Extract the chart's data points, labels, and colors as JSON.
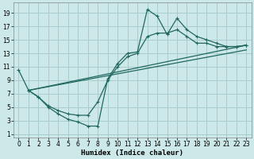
{
  "xlabel": "Humidex (Indice chaleur)",
  "bg_color": "#cce8e8",
  "grid_color": "#a8cccc",
  "line_color": "#206860",
  "xlim": [
    -0.5,
    23.5
  ],
  "ylim": [
    0.5,
    20.5
  ],
  "xticks": [
    0,
    1,
    2,
    3,
    4,
    5,
    6,
    7,
    8,
    9,
    10,
    11,
    12,
    13,
    14,
    15,
    16,
    17,
    18,
    19,
    20,
    21,
    22,
    23
  ],
  "yticks": [
    1,
    3,
    5,
    7,
    9,
    11,
    13,
    15,
    17,
    19
  ],
  "curve1_x": [
    0,
    1,
    2,
    3,
    4,
    5,
    6,
    7,
    8,
    9,
    10,
    11,
    12,
    13,
    14,
    15,
    16,
    17,
    18,
    19,
    20,
    21,
    22,
    23
  ],
  "curve1_y": [
    10.5,
    7.5,
    6.5,
    5.0,
    4.0,
    3.2,
    2.8,
    2.2,
    2.2,
    9.2,
    11.5,
    13.0,
    13.2,
    19.5,
    18.5,
    15.8,
    18.2,
    16.5,
    15.5,
    15.0,
    14.5,
    14.0,
    14.0,
    14.2
  ],
  "curve2_x": [
    1,
    2,
    3,
    4,
    5,
    6,
    7,
    8,
    9,
    10,
    11,
    12,
    13,
    14,
    15,
    16,
    17,
    18,
    19,
    20,
    21,
    22,
    23
  ],
  "curve2_y": [
    7.5,
    6.5,
    5.2,
    4.5,
    4.0,
    3.8,
    3.8,
    5.8,
    9.0,
    11.0,
    12.5,
    13.0,
    15.5,
    16.0,
    16.0,
    16.5,
    15.5,
    14.5,
    14.5,
    14.0,
    14.0,
    14.0,
    14.2
  ],
  "trend1_x": [
    1,
    23
  ],
  "trend1_y": [
    7.5,
    13.5
  ],
  "trend2_x": [
    1,
    23
  ],
  "trend2_y": [
    7.5,
    14.2
  ]
}
